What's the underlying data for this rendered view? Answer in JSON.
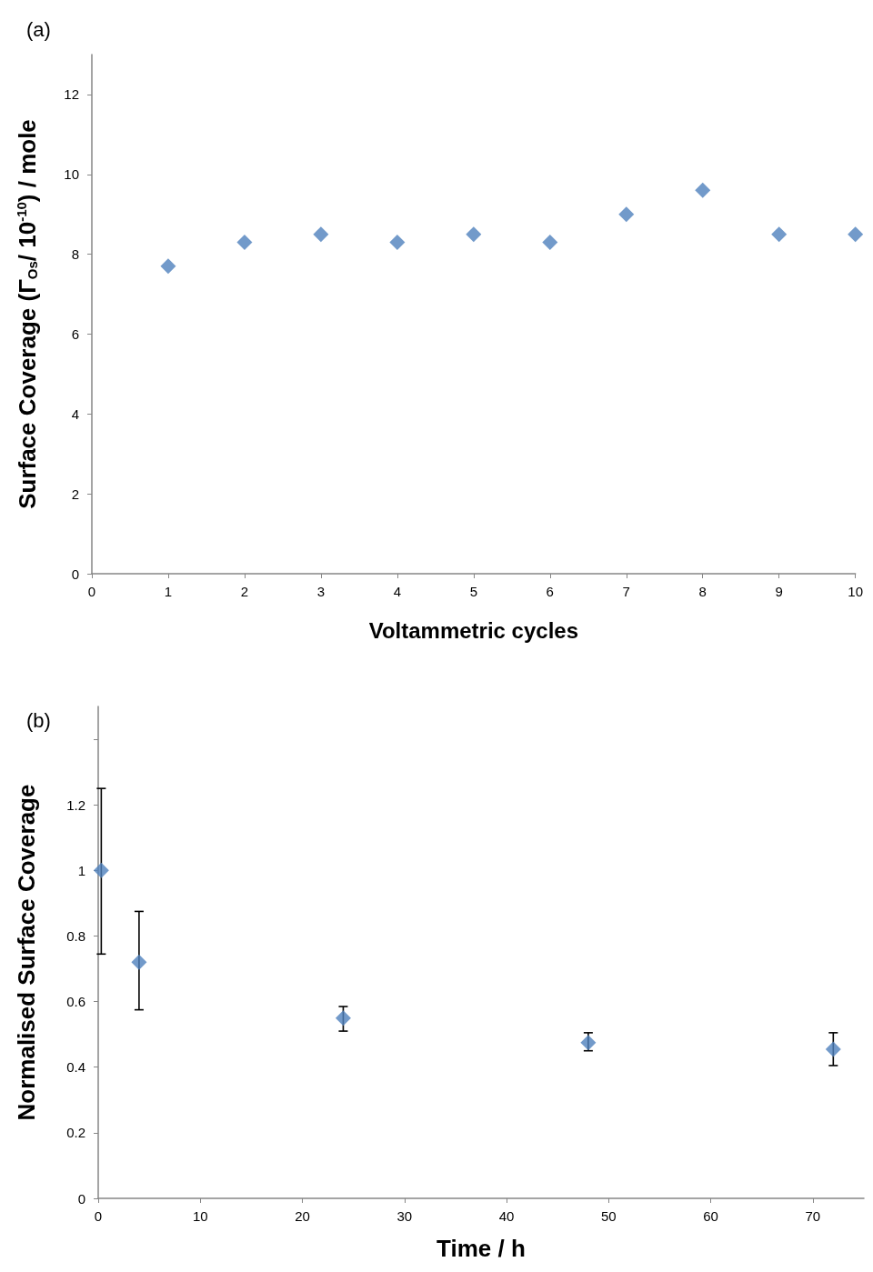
{
  "chart_data": [
    {
      "type": "scatter",
      "title": "(a)",
      "xlabel": "Voltammetric cycles",
      "ylabel": "Surface Coverage (Γ$_{Os}$/ 10$^{-10}$) / mole",
      "marker": "diamond",
      "color": "#4f81bd",
      "x": [
        1,
        2,
        3,
        4,
        5,
        6,
        7,
        8,
        9,
        10
      ],
      "values": [
        7.7,
        8.3,
        8.5,
        8.3,
        8.5,
        8.3,
        9.0,
        9.6,
        8.5,
        8.5
      ],
      "xlim": [
        0,
        10
      ],
      "xticks": [
        0,
        1,
        2,
        3,
        4,
        5,
        6,
        7,
        8,
        9,
        10
      ],
      "ylim": [
        0,
        13
      ],
      "yticks": [
        0,
        2,
        4,
        6,
        8,
        10,
        12
      ]
    },
    {
      "type": "scatter",
      "title": "(b)",
      "xlabel": "Time / h",
      "ylabel": "Normalised Surface Coverage",
      "marker": "diamond",
      "color": "#4f81bd",
      "x": [
        0.3,
        4,
        24,
        48,
        72
      ],
      "values": [
        1.0,
        0.72,
        0.55,
        0.475,
        0.455
      ],
      "errors": [
        [
          0.745,
          1.25
        ],
        [
          0.575,
          0.875
        ],
        [
          0.51,
          0.585
        ],
        [
          0.45,
          0.505
        ],
        [
          0.405,
          0.505
        ]
      ],
      "xlim": [
        0,
        75
      ],
      "xticks": [
        0,
        10,
        20,
        30,
        40,
        50,
        60,
        70
      ],
      "ylim": [
        0,
        1.5
      ],
      "yticks": [
        0,
        0.2,
        0.4,
        0.6,
        0.8,
        1,
        1.2,
        {
          "value": 1.4,
          "label": null
        }
      ]
    }
  ]
}
